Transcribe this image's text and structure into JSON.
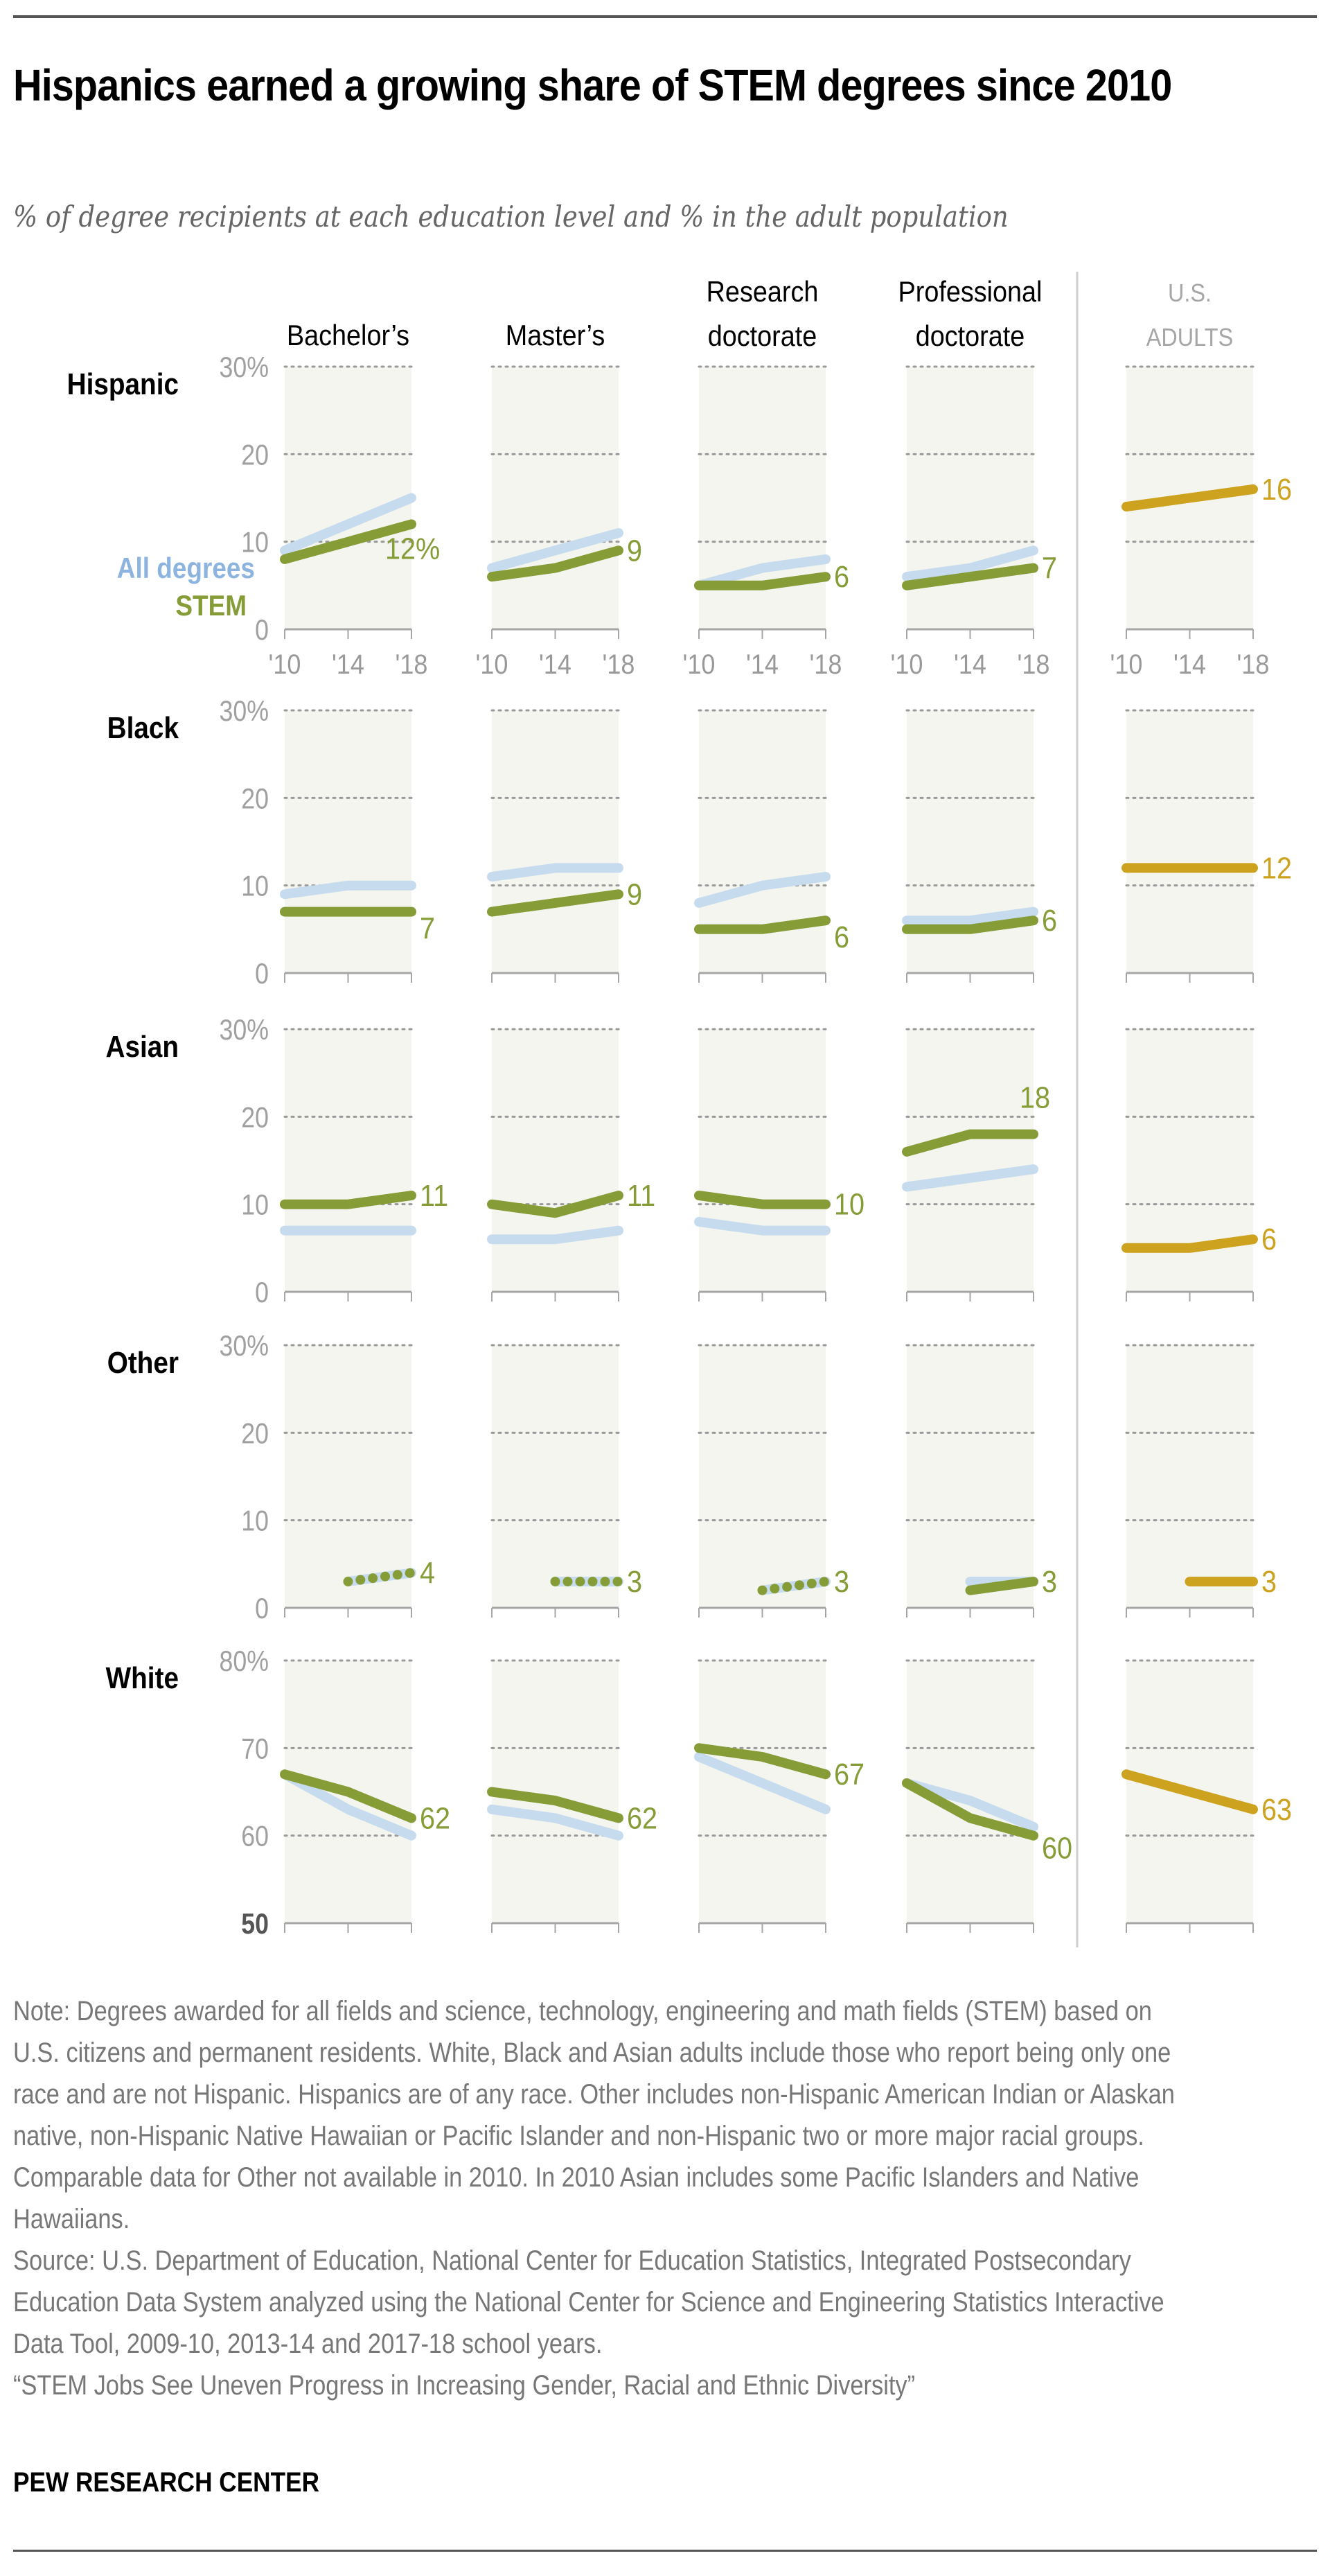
{
  "header": {
    "title": "Hispanics earned a growing share of STEM degrees since 2010",
    "subtitle": "% of degree recipients at each education level and % in the adult population"
  },
  "legend": {
    "all": "All degrees",
    "stem": "STEM"
  },
  "colors": {
    "all": "#c7dbef",
    "stem": "#869c36",
    "adults": "#cda21e",
    "panel_bg": "#f4f5ef",
    "grid": "#999999",
    "axis": "#a6a6a6",
    "tick_label": "#a0a0a0",
    "text": "#000000"
  },
  "chart_data": {
    "type": "line",
    "title": "Hispanics earned a growing share of STEM degrees since 2010",
    "subtitle": "% of degree recipients at each education level and % in the adult population",
    "x": [
      "'10",
      "'14",
      "'18"
    ],
    "columns": [
      "Bachelor’s",
      "Master’s",
      "Research doctorate",
      "Professional doctorate",
      "U.S. ADULTS"
    ],
    "series_names": [
      "All degrees",
      "STEM",
      "U.S. adults"
    ],
    "grid": true,
    "rows": [
      {
        "group": "Hispanic",
        "ylim": [
          0,
          30
        ],
        "ticks": [
          "30%",
          "20",
          "10",
          "0"
        ],
        "panels": [
          {
            "all": [
              9,
              12,
              15
            ],
            "stem": [
              8,
              10,
              12
            ],
            "label": "12%"
          },
          {
            "all": [
              7,
              9,
              11
            ],
            "stem": [
              6,
              7,
              9
            ],
            "label": "9"
          },
          {
            "all": [
              5,
              7,
              8
            ],
            "stem": [
              5,
              5,
              6
            ],
            "label": "6"
          },
          {
            "all": [
              6,
              7,
              9
            ],
            "stem": [
              5,
              6,
              7
            ],
            "label": "7"
          },
          {
            "adults": [
              14,
              15,
              16
            ],
            "label": "16"
          }
        ]
      },
      {
        "group": "Black",
        "ylim": [
          0,
          30
        ],
        "ticks": [
          "30%",
          "20",
          "10",
          "0"
        ],
        "panels": [
          {
            "all": [
              9,
              10,
              10
            ],
            "stem": [
              7,
              7,
              7
            ],
            "label": "7"
          },
          {
            "all": [
              11,
              12,
              12
            ],
            "stem": [
              7,
              8,
              9
            ],
            "label": "9"
          },
          {
            "all": [
              8,
              10,
              11
            ],
            "stem": [
              5,
              5,
              6
            ],
            "label": "6"
          },
          {
            "all": [
              6,
              6,
              7
            ],
            "stem": [
              5,
              5,
              6
            ],
            "label": "6"
          },
          {
            "adults": [
              12,
              12,
              12
            ],
            "label": "12"
          }
        ]
      },
      {
        "group": "Asian",
        "ylim": [
          0,
          30
        ],
        "ticks": [
          "30%",
          "20",
          "10",
          "0"
        ],
        "panels": [
          {
            "all": [
              7,
              7,
              7
            ],
            "stem": [
              10,
              10,
              11
            ],
            "label": "11"
          },
          {
            "all": [
              6,
              6,
              7
            ],
            "stem": [
              10,
              9,
              11
            ],
            "label": "11"
          },
          {
            "all": [
              8,
              7,
              7
            ],
            "stem": [
              11,
              10,
              10
            ],
            "label": "10"
          },
          {
            "all": [
              12,
              13,
              14
            ],
            "stem": [
              16,
              18,
              18
            ],
            "label": "18"
          },
          {
            "adults": [
              5,
              5,
              6
            ],
            "label": "6"
          }
        ]
      },
      {
        "group": "Other",
        "ylim": [
          0,
          30
        ],
        "ticks": [
          "30%",
          "20",
          "10",
          "0"
        ],
        "panels": [
          {
            "all": [
              null,
              3,
              4
            ],
            "stem": [
              null,
              3,
              4
            ],
            "stem_dotted": true,
            "label": "4"
          },
          {
            "all": [
              null,
              3,
              3
            ],
            "stem": [
              null,
              3,
              3
            ],
            "stem_dotted": true,
            "label": "3"
          },
          {
            "all": [
              null,
              2,
              3
            ],
            "stem": [
              null,
              2,
              3
            ],
            "stem_dotted": true,
            "label": "3"
          },
          {
            "all": [
              null,
              3,
              3
            ],
            "stem": [
              null,
              2,
              3
            ],
            "label": "3"
          },
          {
            "adults": [
              null,
              3,
              3
            ],
            "label": "3"
          }
        ]
      },
      {
        "group": "White",
        "ylim": [
          50,
          80
        ],
        "ticks": [
          "80%",
          "70",
          "60",
          "50"
        ],
        "panels": [
          {
            "all": [
              67,
              63,
              60
            ],
            "stem": [
              67,
              65,
              62
            ],
            "label": "62"
          },
          {
            "all": [
              63,
              62,
              60
            ],
            "stem": [
              65,
              64,
              62
            ],
            "label": "62"
          },
          {
            "all": [
              69,
              66,
              63
            ],
            "stem": [
              70,
              69,
              67
            ],
            "label": "67"
          },
          {
            "all": [
              66,
              64,
              61
            ],
            "stem": [
              66,
              62,
              60
            ],
            "label": "60"
          },
          {
            "adults": [
              67,
              65,
              63
            ],
            "label": "63"
          }
        ]
      }
    ]
  },
  "notes": {
    "note": "Note: Degrees awarded for all fields and science, technology, engineering and math fields (STEM) based on U.S. citizens and permanent residents. White, Black and Asian adults include those who report being only one race and are not Hispanic. Hispanics are of any race. Other includes non-Hispanic American Indian or Alaskan native, non-Hispanic Native Hawaiian or Pacific Islander and non-Hispanic two or more major racial groups. Comparable data for Other not available in 2010. In 2010 Asian includes some Pacific Islanders and Native Hawaiians.",
    "source": "Source: U.S. Department of Education, National Center for Education Statistics, Integrated Postsecondary Education Data System analyzed using the National Center for Science and Engineering Statistics Interactive Data Tool, 2009-10, 2013-14 and 2017-18 school years.",
    "report": "“STEM Jobs See Uneven Progress in Increasing Gender, Racial and Ethnic Diversity”"
  },
  "footer": {
    "brand": "PEW RESEARCH CENTER"
  }
}
